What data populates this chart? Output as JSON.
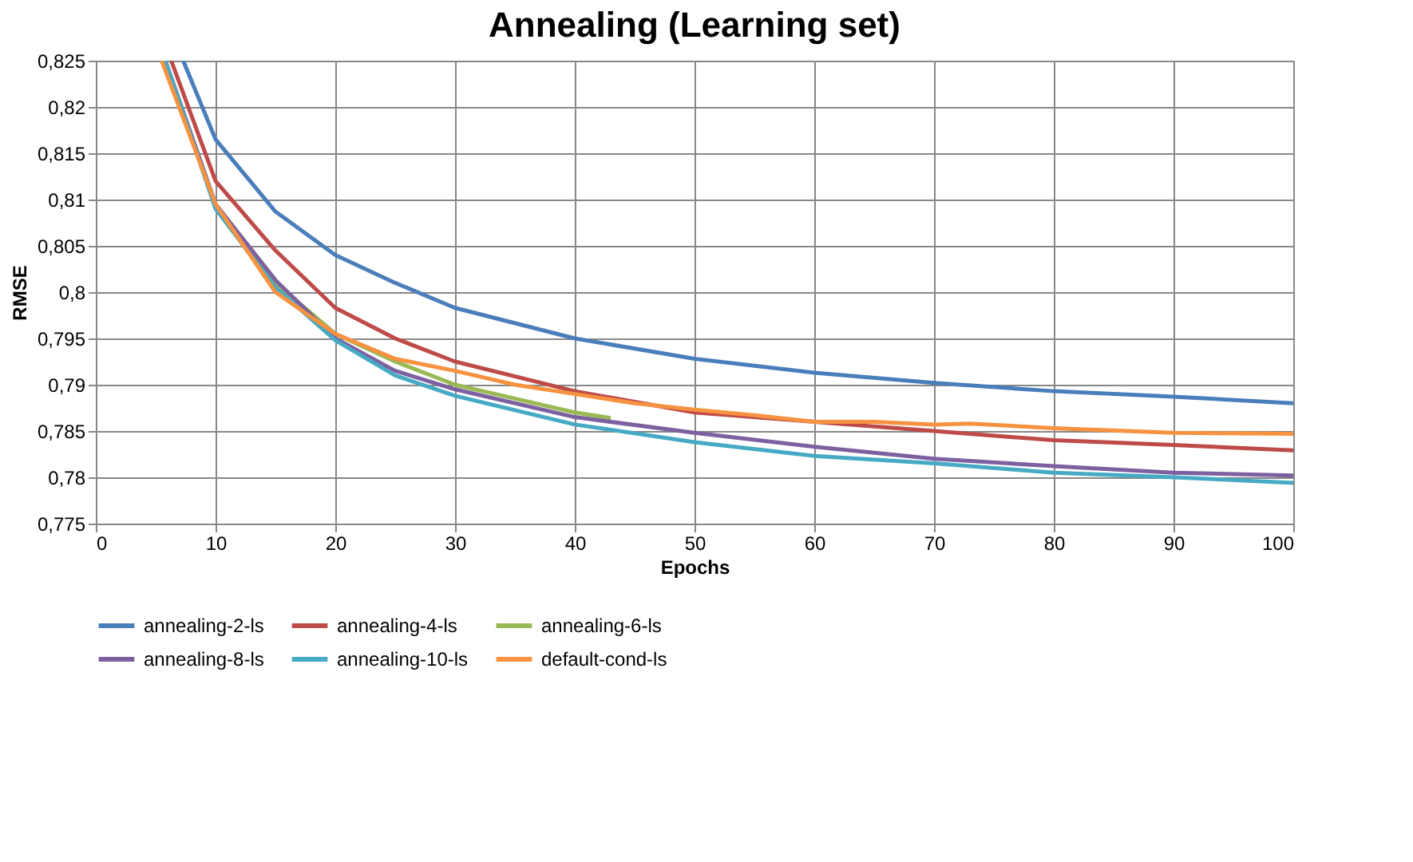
{
  "chart_data": {
    "type": "line",
    "title": "Annealing (Learning set)",
    "xlabel": "Epochs",
    "ylabel": "RMSE",
    "xlim": [
      0,
      100
    ],
    "xticks": [
      0,
      10,
      20,
      30,
      40,
      50,
      60,
      70,
      80,
      90,
      100
    ],
    "ylim": [
      0.775,
      0.825
    ],
    "yticks": [
      {
        "value": 0.775,
        "label": "0,775"
      },
      {
        "value": 0.78,
        "label": "0,78"
      },
      {
        "value": 0.785,
        "label": "0,785"
      },
      {
        "value": 0.79,
        "label": "0,79"
      },
      {
        "value": 0.795,
        "label": "0,795"
      },
      {
        "value": 0.8,
        "label": "0,8"
      },
      {
        "value": 0.805,
        "label": "0,805"
      },
      {
        "value": 0.81,
        "label": "0,81"
      },
      {
        "value": 0.815,
        "label": "0,815"
      },
      {
        "value": 0.82,
        "label": "0,82"
      },
      {
        "value": 0.825,
        "label": "0,825"
      }
    ],
    "grid": true,
    "legend": "bottom",
    "marker": "none",
    "line_style": "solid",
    "series": [
      {
        "name": "annealing-2-ls",
        "color": "#4a7ebb",
        "x": [
          7.3,
          10,
          15,
          20,
          25,
          30,
          40,
          50,
          60,
          70,
          80,
          90,
          100
        ],
        "values": [
          0.825,
          0.8165,
          0.8087,
          0.804,
          0.801,
          0.7983,
          0.795,
          0.7928,
          0.7913,
          0.7902,
          0.7893,
          0.7887,
          0.788
        ]
      },
      {
        "name": "annealing-4-ls",
        "color": "#be4b48",
        "x": [
          6.3,
          10,
          15,
          20,
          25,
          30,
          40,
          50,
          60,
          70,
          80,
          90,
          100
        ],
        "values": [
          0.825,
          0.812,
          0.8045,
          0.7983,
          0.795,
          0.7925,
          0.7893,
          0.787,
          0.786,
          0.785,
          0.784,
          0.7835,
          0.7829
        ]
      },
      {
        "name": "annealing-6-ls",
        "color": "#98b954",
        "x": [
          5.8,
          10,
          15,
          20,
          25,
          30,
          35,
          40,
          43
        ],
        "values": [
          0.825,
          0.8095,
          0.801,
          0.7955,
          0.7925,
          0.79,
          0.7885,
          0.787,
          0.7864
        ]
      },
      {
        "name": "annealing-8-ls",
        "color": "#7d60a0",
        "x": [
          5.8,
          10,
          15,
          20,
          25,
          30,
          40,
          50,
          60,
          70,
          80,
          90,
          100
        ],
        "values": [
          0.825,
          0.8095,
          0.8013,
          0.795,
          0.7915,
          0.7895,
          0.7865,
          0.7848,
          0.7833,
          0.782,
          0.7812,
          0.7805,
          0.7802
        ]
      },
      {
        "name": "annealing-10-ls",
        "color": "#46aac5",
        "x": [
          5.8,
          10,
          15,
          20,
          25,
          30,
          40,
          50,
          60,
          70,
          80,
          90,
          100
        ],
        "values": [
          0.825,
          0.809,
          0.8005,
          0.7948,
          0.791,
          0.7888,
          0.7857,
          0.7838,
          0.7823,
          0.7815,
          0.7805,
          0.78,
          0.7794
        ]
      },
      {
        "name": "default-cond-ls",
        "color": "#f69240",
        "x": [
          5.5,
          10,
          15,
          20,
          25,
          30,
          35,
          40,
          45,
          50,
          55,
          60,
          65,
          70,
          73,
          80,
          90,
          100
        ],
        "values": [
          0.825,
          0.8095,
          0.8,
          0.7955,
          0.7928,
          0.7915,
          0.79,
          0.789,
          0.788,
          0.7873,
          0.7867,
          0.786,
          0.786,
          0.7857,
          0.7858,
          0.7853,
          0.7848,
          0.7847
        ]
      }
    ]
  }
}
